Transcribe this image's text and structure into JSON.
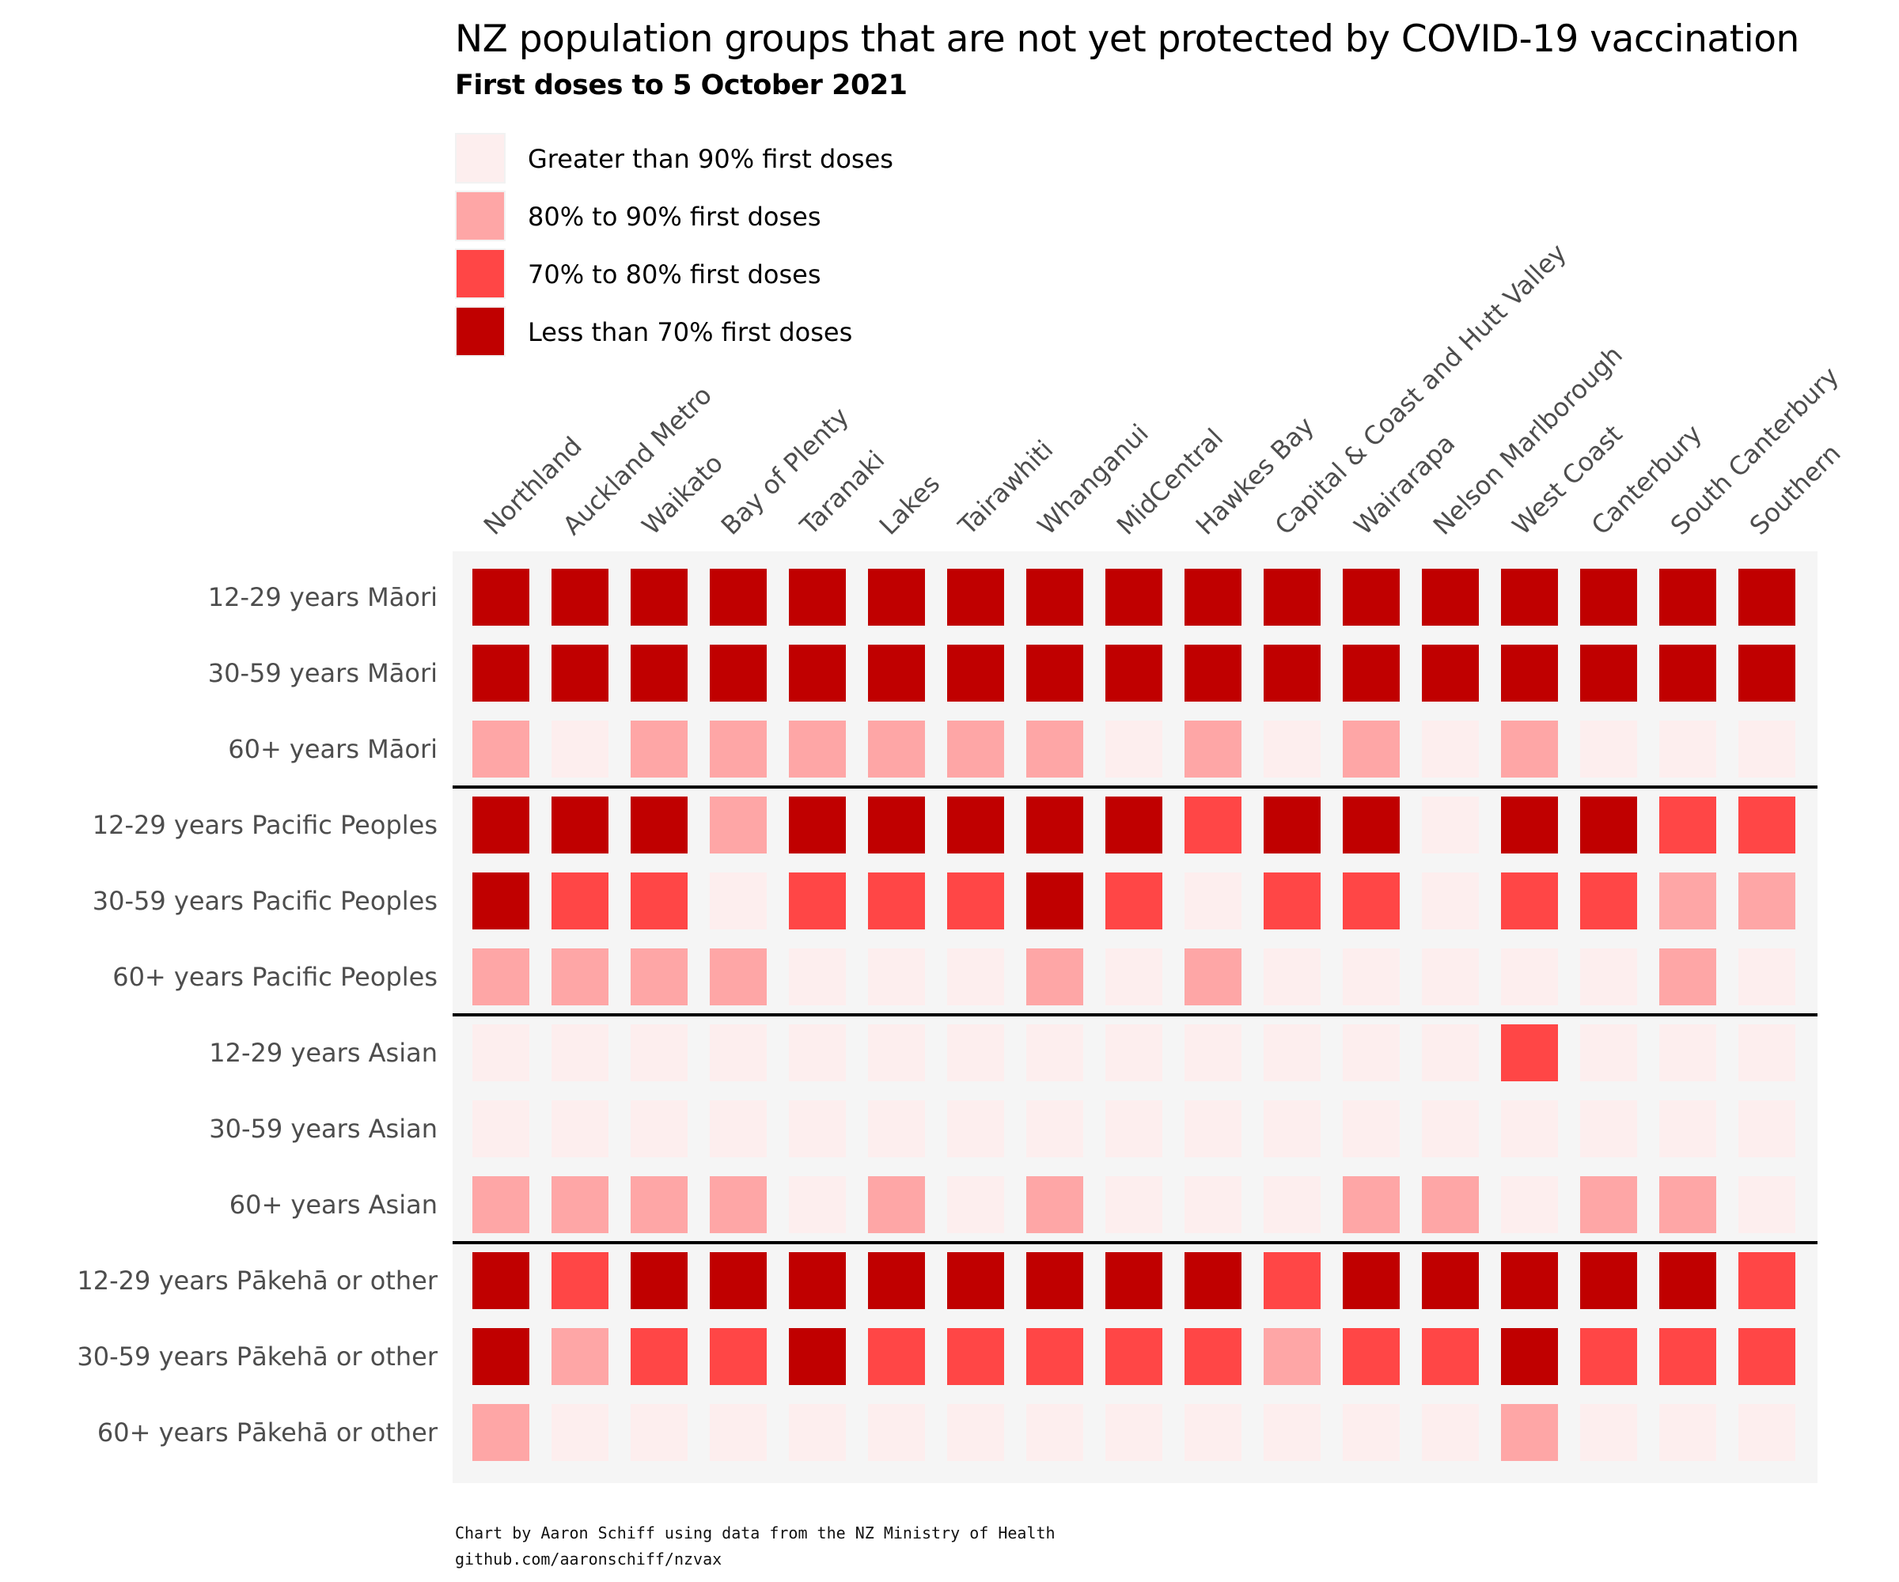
{
  "chart_data": {
    "type": "heatmap",
    "title": "NZ population groups that are not yet protected by COVID-19 vaccination",
    "subtitle": "First doses to 5 October 2021",
    "legend": {
      "placement": "top-left",
      "items": [
        {
          "key": "gt90",
          "label": "Greater than 90% first doses",
          "color": "#fdeeee"
        },
        {
          "key": "80to90",
          "label": "80% to 90% first doses",
          "color": "#fea6a6"
        },
        {
          "key": "70to80",
          "label": "70% to 80% first doses",
          "color": "#ff4646"
        },
        {
          "key": "lt70",
          "label": "Less than 70% first doses",
          "color": "#c00000"
        }
      ]
    },
    "columns": [
      "Northland",
      "Auckland Metro",
      "Waikato",
      "Bay of Plenty",
      "Taranaki",
      "Lakes",
      "Tairawhiti",
      "Whanganui",
      "MidCentral",
      "Hawkes Bay",
      "Capital & Coast and Hutt Valley",
      "Wairarapa",
      "Nelson Marlborough",
      "West Coast",
      "Canterbury",
      "South Canterbury",
      "Southern"
    ],
    "rows": [
      "12-29 years Māori",
      "30-59 years Māori",
      "60+ years Māori",
      "12-29 years Pacific Peoples",
      "30-59 years Pacific Peoples",
      "60+ years Pacific Peoples",
      "12-29 years Asian",
      "30-59 years Asian",
      "60+ years Asian",
      "12-29 years Pākehā or other",
      "30-59 years Pākehā or other",
      "60+ years Pākehā or other"
    ],
    "group_separators_after_rows": [
      2,
      5,
      8
    ],
    "cells": [
      [
        "lt70",
        "lt70",
        "lt70",
        "lt70",
        "lt70",
        "lt70",
        "lt70",
        "lt70",
        "lt70",
        "lt70",
        "lt70",
        "lt70",
        "lt70",
        "lt70",
        "lt70",
        "lt70",
        "lt70"
      ],
      [
        "lt70",
        "lt70",
        "lt70",
        "lt70",
        "lt70",
        "lt70",
        "lt70",
        "lt70",
        "lt70",
        "lt70",
        "lt70",
        "lt70",
        "lt70",
        "lt70",
        "lt70",
        "lt70",
        "lt70"
      ],
      [
        "80to90",
        "gt90",
        "80to90",
        "80to90",
        "80to90",
        "80to90",
        "80to90",
        "80to90",
        "gt90",
        "80to90",
        "gt90",
        "80to90",
        "gt90",
        "80to90",
        "gt90",
        "gt90",
        "gt90"
      ],
      [
        "lt70",
        "lt70",
        "lt70",
        "80to90",
        "lt70",
        "lt70",
        "lt70",
        "lt70",
        "lt70",
        "70to80",
        "lt70",
        "lt70",
        "gt90",
        "lt70",
        "lt70",
        "70to80",
        "70to80"
      ],
      [
        "lt70",
        "70to80",
        "70to80",
        "gt90",
        "70to80",
        "70to80",
        "70to80",
        "lt70",
        "70to80",
        "gt90",
        "70to80",
        "70to80",
        "gt90",
        "70to80",
        "70to80",
        "80to90",
        "80to90"
      ],
      [
        "80to90",
        "80to90",
        "80to90",
        "80to90",
        "gt90",
        "gt90",
        "gt90",
        "80to90",
        "gt90",
        "80to90",
        "gt90",
        "gt90",
        "gt90",
        "gt90",
        "gt90",
        "80to90",
        "gt90"
      ],
      [
        "gt90",
        "gt90",
        "gt90",
        "gt90",
        "gt90",
        "gt90",
        "gt90",
        "gt90",
        "gt90",
        "gt90",
        "gt90",
        "gt90",
        "gt90",
        "70to80",
        "gt90",
        "gt90",
        "gt90"
      ],
      [
        "gt90",
        "gt90",
        "gt90",
        "gt90",
        "gt90",
        "gt90",
        "gt90",
        "gt90",
        "gt90",
        "gt90",
        "gt90",
        "gt90",
        "gt90",
        "gt90",
        "gt90",
        "gt90",
        "gt90"
      ],
      [
        "80to90",
        "80to90",
        "80to90",
        "80to90",
        "gt90",
        "80to90",
        "gt90",
        "80to90",
        "gt90",
        "gt90",
        "gt90",
        "80to90",
        "80to90",
        "gt90",
        "80to90",
        "80to90",
        "gt90"
      ],
      [
        "lt70",
        "70to80",
        "lt70",
        "lt70",
        "lt70",
        "lt70",
        "lt70",
        "lt70",
        "lt70",
        "lt70",
        "70to80",
        "lt70",
        "lt70",
        "lt70",
        "lt70",
        "lt70",
        "70to80"
      ],
      [
        "lt70",
        "80to90",
        "70to80",
        "70to80",
        "lt70",
        "70to80",
        "70to80",
        "70to80",
        "70to80",
        "70to80",
        "80to90",
        "70to80",
        "70to80",
        "lt70",
        "70to80",
        "70to80",
        "70to80"
      ],
      [
        "80to90",
        "gt90",
        "gt90",
        "gt90",
        "gt90",
        "gt90",
        "gt90",
        "gt90",
        "gt90",
        "gt90",
        "gt90",
        "gt90",
        "gt90",
        "80to90",
        "gt90",
        "gt90",
        "gt90"
      ]
    ],
    "grid": false
  },
  "caption": {
    "line1": "Chart by Aaron Schiff using data from the NZ Ministry of Health",
    "line2": "github.com/aaronschiff/nzvax"
  }
}
